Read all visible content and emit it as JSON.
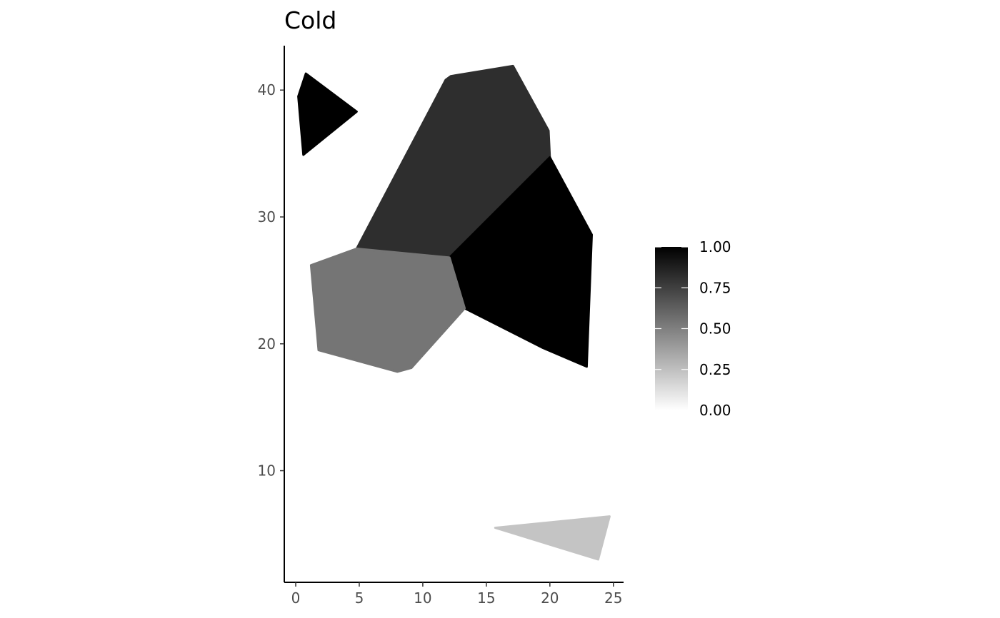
{
  "chart_data": {
    "type": "choropleth-polygons",
    "title": "Cold",
    "xlabel": "",
    "ylabel": "",
    "xlim": [
      -0.9,
      25.8
    ],
    "ylim": [
      1.2,
      43.5
    ],
    "x_ticks": [
      0,
      5,
      10,
      15,
      20,
      25
    ],
    "y_ticks": [
      10,
      20,
      30,
      40
    ],
    "grid": false,
    "legend": {
      "position": "right",
      "title": "",
      "range": [
        0,
        1
      ],
      "ticks": [
        0,
        0.25,
        0.5,
        0.75,
        1
      ],
      "tick_labels": [
        "0.00",
        "0.25",
        "0.50",
        "0.75",
        "1.00"
      ],
      "color_low": "#ffffff",
      "color_high": "#000000"
    },
    "polygons": [
      {
        "id": "triangle-top-left",
        "value": 1.0,
        "points": [
          [
            0.2,
            39.5
          ],
          [
            0.8,
            41.3
          ],
          [
            4.8,
            38.3
          ],
          [
            0.6,
            34.9
          ]
        ]
      },
      {
        "id": "large-north",
        "value": 0.82,
        "points": [
          [
            4.8,
            27.5
          ],
          [
            11.8,
            40.8
          ],
          [
            12.2,
            41.1
          ],
          [
            17.1,
            41.9
          ],
          [
            19.9,
            36.8
          ],
          [
            20.0,
            34.7
          ],
          [
            12.1,
            26.8
          ]
        ]
      },
      {
        "id": "east",
        "value": 1.0,
        "points": [
          [
            12.1,
            26.8
          ],
          [
            20.0,
            34.7
          ],
          [
            23.3,
            28.6
          ],
          [
            22.9,
            18.2
          ],
          [
            19.4,
            19.7
          ],
          [
            13.3,
            22.8
          ]
        ]
      },
      {
        "id": "west",
        "value": 0.54,
        "points": [
          [
            1.2,
            26.2
          ],
          [
            4.8,
            27.5
          ],
          [
            12.1,
            26.8
          ],
          [
            13.3,
            22.8
          ],
          [
            9.1,
            18.1
          ],
          [
            8.0,
            17.8
          ],
          [
            1.8,
            19.5
          ]
        ]
      },
      {
        "id": "triangle-bottom-right",
        "value": 0.23,
        "points": [
          [
            15.7,
            5.5
          ],
          [
            24.7,
            6.4
          ],
          [
            23.8,
            3.0
          ]
        ]
      }
    ]
  }
}
